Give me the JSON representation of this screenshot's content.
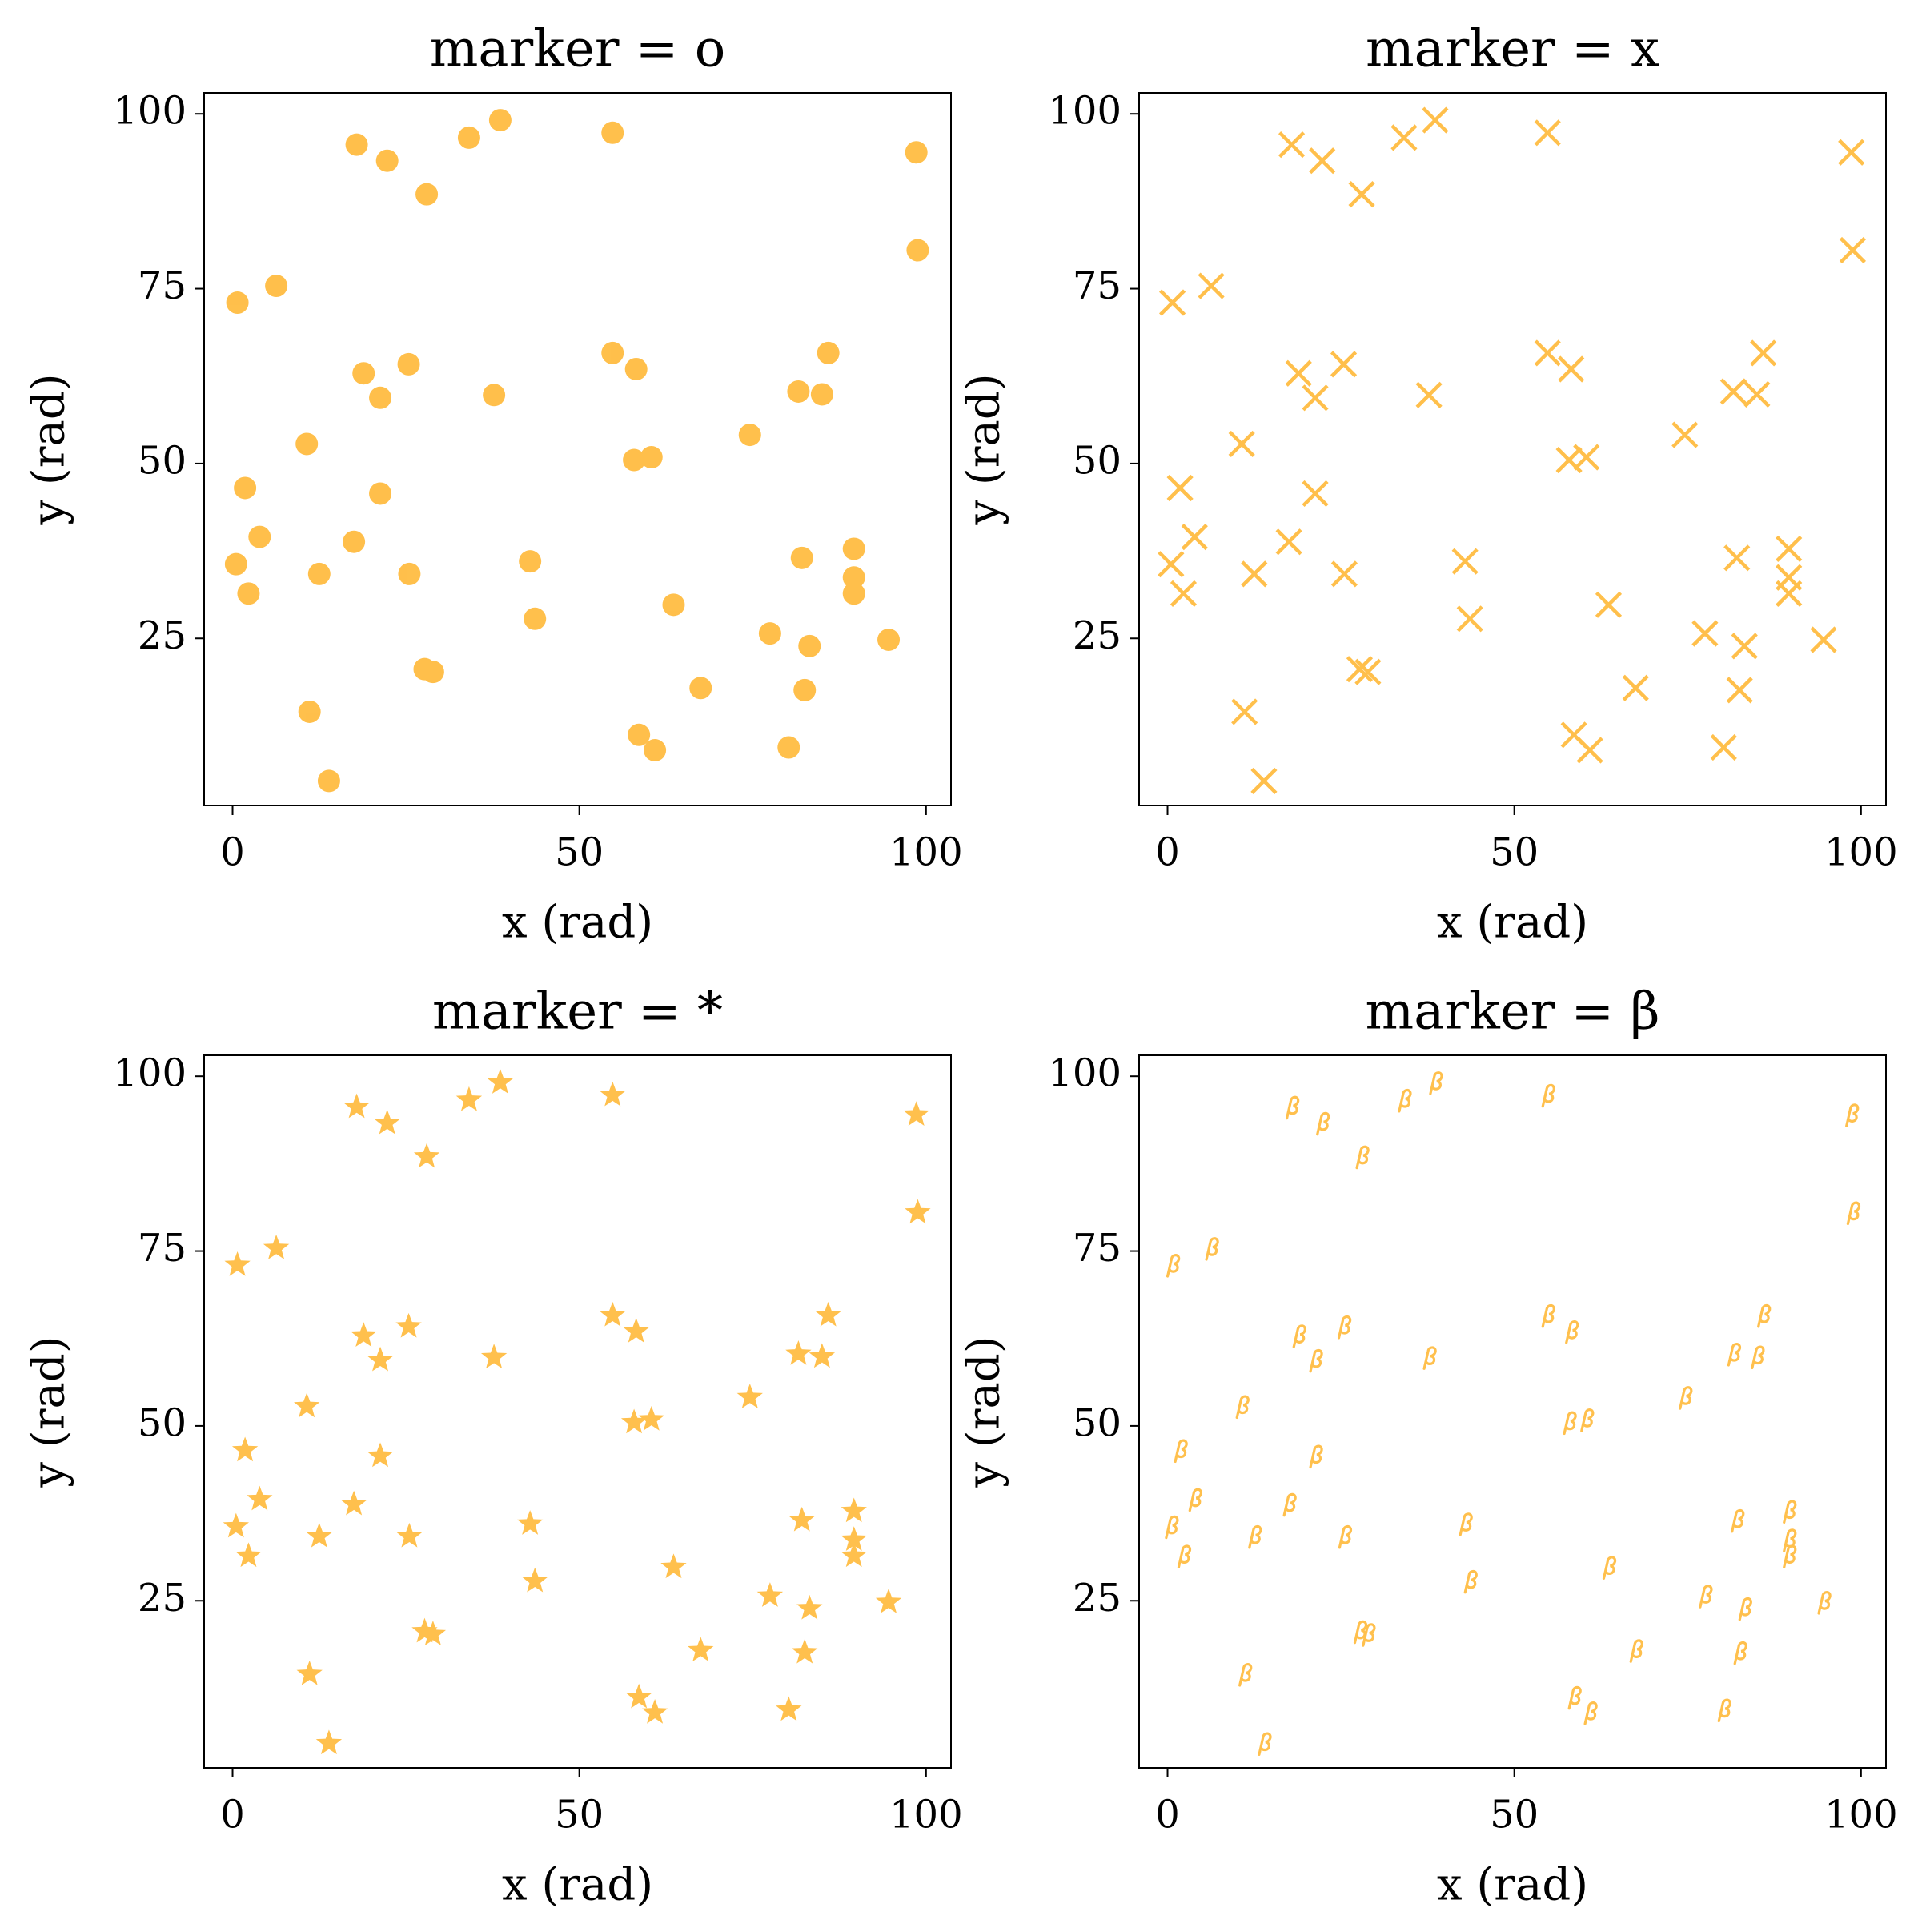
{
  "chart_data": [
    {
      "type": "scatter",
      "title": "marker = o",
      "x_label": "x (rad)",
      "y_label": "y (rad)",
      "marker": "o",
      "color": "#ffa500",
      "alpha": 0.7,
      "x": [
        17.9,
        22.3,
        28.0,
        34.1,
        38.6,
        54.8,
        98.6,
        98.8,
        0.7,
        6.3,
        18.9,
        25.4,
        21.3,
        37.7,
        10.7,
        54.8,
        58.2,
        57.9,
        60.4,
        81.6,
        85.0,
        85.9,
        74.6,
        1.8,
        21.3,
        3.9,
        17.5,
        0.5,
        2.3,
        12.5,
        25.5,
        42.9,
        43.6,
        27.7,
        28.9,
        63.6,
        82.1,
        89.6,
        89.6,
        89.6,
        77.5,
        83.2,
        94.6,
        67.5,
        82.5,
        11.1,
        13.9,
        58.6,
        60.9,
        80.2
      ],
      "values": [
        95.6,
        93.3,
        88.5,
        96.6,
        99.1,
        97.3,
        94.5,
        80.5,
        73.0,
        75.4,
        62.9,
        64.2,
        59.4,
        59.8,
        52.8,
        65.8,
        63.5,
        50.5,
        50.9,
        60.3,
        59.9,
        65.8,
        54.1,
        46.5,
        45.7,
        39.5,
        38.8,
        35.6,
        31.4,
        34.2,
        34.2,
        36.0,
        27.8,
        20.6,
        20.2,
        29.8,
        36.5,
        37.8,
        33.7,
        31.4,
        25.7,
        23.9,
        24.8,
        17.9,
        17.6,
        14.5,
        4.6,
        11.2,
        9.0,
        9.4
      ],
      "xlim": [
        -4.1,
        103.6
      ],
      "ylim": [
        1.1,
        103
      ],
      "xticks": [
        0,
        50,
        100
      ],
      "yticks": [
        25,
        50,
        75,
        100
      ]
    },
    {
      "type": "scatter",
      "title": "marker = x",
      "x_label": "x (rad)",
      "y_label": "y (rad)",
      "marker": "x",
      "color": "#ffa500",
      "alpha": 0.7,
      "x": [
        17.9,
        22.3,
        28.0,
        34.1,
        38.6,
        54.8,
        98.6,
        98.8,
        0.7,
        6.3,
        18.9,
        25.4,
        21.3,
        37.7,
        10.7,
        54.8,
        58.2,
        57.9,
        60.4,
        81.6,
        85.0,
        85.9,
        74.6,
        1.8,
        21.3,
        3.9,
        17.5,
        0.5,
        2.3,
        12.5,
        25.5,
        42.9,
        43.6,
        27.7,
        28.9,
        63.6,
        82.1,
        89.6,
        89.6,
        89.6,
        77.5,
        83.2,
        94.6,
        67.5,
        82.5,
        11.1,
        13.9,
        58.6,
        60.9,
        80.2
      ],
      "values": [
        95.6,
        93.3,
        88.5,
        96.6,
        99.1,
        97.3,
        94.5,
        80.5,
        73.0,
        75.4,
        62.9,
        64.2,
        59.4,
        59.8,
        52.8,
        65.8,
        63.5,
        50.5,
        50.9,
        60.3,
        59.9,
        65.8,
        54.1,
        46.5,
        45.7,
        39.5,
        38.8,
        35.6,
        31.4,
        34.2,
        34.2,
        36.0,
        27.8,
        20.6,
        20.2,
        29.8,
        36.5,
        37.8,
        33.7,
        31.4,
        25.7,
        23.9,
        24.8,
        17.9,
        17.6,
        14.5,
        4.6,
        11.2,
        9.0,
        9.4
      ],
      "xlim": [
        -4.1,
        103.6
      ],
      "ylim": [
        1.1,
        103
      ],
      "xticks": [
        0,
        50,
        100
      ],
      "yticks": [
        25,
        50,
        75,
        100
      ]
    },
    {
      "type": "scatter",
      "title": "marker = *",
      "x_label": "x (rad)",
      "y_label": "y (rad)",
      "marker": "*",
      "color": "#ffa500",
      "alpha": 0.7,
      "x": [
        17.9,
        22.3,
        28.0,
        34.1,
        38.6,
        54.8,
        98.6,
        98.8,
        0.7,
        6.3,
        18.9,
        25.4,
        21.3,
        37.7,
        10.7,
        54.8,
        58.2,
        57.9,
        60.4,
        81.6,
        85.0,
        85.9,
        74.6,
        1.8,
        21.3,
        3.9,
        17.5,
        0.5,
        2.3,
        12.5,
        25.5,
        42.9,
        43.6,
        27.7,
        28.9,
        63.6,
        82.1,
        89.6,
        89.6,
        89.6,
        77.5,
        83.2,
        94.6,
        67.5,
        82.5,
        11.1,
        13.9,
        58.6,
        60.9,
        80.2
      ],
      "values": [
        95.6,
        93.3,
        88.5,
        96.6,
        99.1,
        97.3,
        94.5,
        80.5,
        73.0,
        75.4,
        62.9,
        64.2,
        59.4,
        59.8,
        52.8,
        65.8,
        63.5,
        50.5,
        50.9,
        60.3,
        59.9,
        65.8,
        54.1,
        46.5,
        45.7,
        39.5,
        38.8,
        35.6,
        31.4,
        34.2,
        34.2,
        36.0,
        27.8,
        20.6,
        20.2,
        29.8,
        36.5,
        37.8,
        33.7,
        31.4,
        25.7,
        23.9,
        24.8,
        17.9,
        17.6,
        14.5,
        4.6,
        11.2,
        9.0,
        9.4
      ],
      "xlim": [
        -4.1,
        103.6
      ],
      "ylim": [
        1.1,
        103
      ],
      "xticks": [
        0,
        50,
        100
      ],
      "yticks": [
        25,
        50,
        75,
        100
      ]
    },
    {
      "type": "scatter",
      "title": "marker = β",
      "x_label": "x (rad)",
      "y_label": "y (rad)",
      "marker": "beta",
      "color": "#ffa500",
      "alpha": 0.7,
      "x": [
        17.9,
        22.3,
        28.0,
        34.1,
        38.6,
        54.8,
        98.6,
        98.8,
        0.7,
        6.3,
        18.9,
        25.4,
        21.3,
        37.7,
        10.7,
        54.8,
        58.2,
        57.9,
        60.4,
        81.6,
        85.0,
        85.9,
        74.6,
        1.8,
        21.3,
        3.9,
        17.5,
        0.5,
        2.3,
        12.5,
        25.5,
        42.9,
        43.6,
        27.7,
        28.9,
        63.6,
        82.1,
        89.6,
        89.6,
        89.6,
        77.5,
        83.2,
        94.6,
        67.5,
        82.5,
        11.1,
        13.9,
        58.6,
        60.9,
        80.2
      ],
      "values": [
        95.6,
        93.3,
        88.5,
        96.6,
        99.1,
        97.3,
        94.5,
        80.5,
        73.0,
        75.4,
        62.9,
        64.2,
        59.4,
        59.8,
        52.8,
        65.8,
        63.5,
        50.5,
        50.9,
        60.3,
        59.9,
        65.8,
        54.1,
        46.5,
        45.7,
        39.5,
        38.8,
        35.6,
        31.4,
        34.2,
        34.2,
        36.0,
        27.8,
        20.6,
        20.2,
        29.8,
        36.5,
        37.8,
        33.7,
        31.4,
        25.7,
        23.9,
        24.8,
        17.9,
        17.6,
        14.5,
        4.6,
        11.2,
        9.0,
        9.4
      ],
      "xlim": [
        -4.1,
        103.6
      ],
      "ylim": [
        1.1,
        103
      ],
      "xticks": [
        0,
        50,
        100
      ],
      "yticks": [
        25,
        50,
        75,
        100
      ]
    }
  ]
}
